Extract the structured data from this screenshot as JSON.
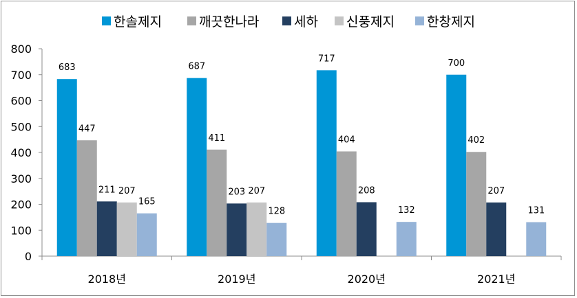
{
  "chart_data": {
    "type": "bar",
    "categories": [
      "2018년",
      "2019년",
      "2020년",
      "2021년"
    ],
    "series": [
      {
        "name": "한솔제지",
        "color": "#0096d6",
        "values": [
          683,
          687,
          717,
          700
        ]
      },
      {
        "name": "깨끗한나라",
        "color": "#a6a6a6",
        "values": [
          447,
          411,
          404,
          402
        ]
      },
      {
        "name": "세하",
        "color": "#243f60",
        "values": [
          211,
          203,
          208,
          207
        ]
      },
      {
        "name": "신풍제지",
        "color": "#c4c4c4",
        "values": [
          207,
          207,
          null,
          null
        ]
      },
      {
        "name": "한창제지",
        "color": "#95b3d7",
        "values": [
          165,
          128,
          132,
          131
        ]
      }
    ],
    "yticks": [
      "0",
      "100",
      "200",
      "300",
      "400",
      "500",
      "600",
      "700",
      "800"
    ],
    "ylim": [
      0,
      800
    ],
    "grid": false,
    "legend": "top"
  }
}
